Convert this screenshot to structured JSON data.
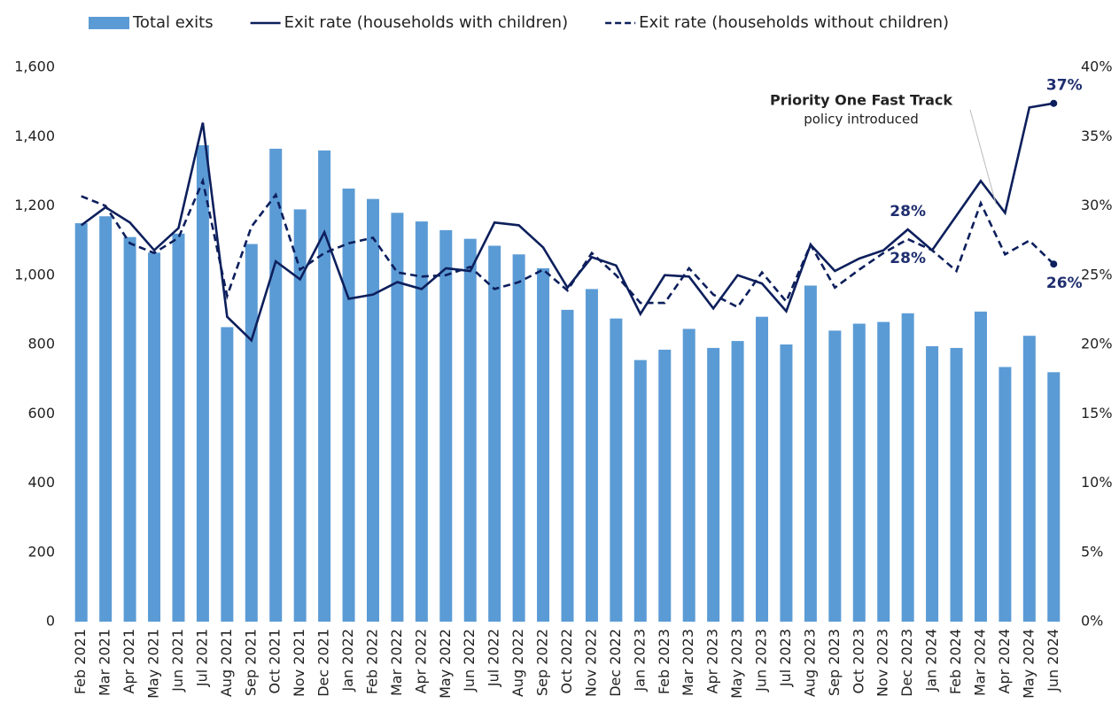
{
  "chart_data": {
    "type": "bar_line",
    "categories": [
      "Feb 2021",
      "Mar 2021",
      "Apr 2021",
      "May 2021",
      "Jun 2021",
      "Jul 2021",
      "Aug 2021",
      "Sep 2021",
      "Oct 2021",
      "Nov 2021",
      "Dec 2021",
      "Jan 2022",
      "Feb 2022",
      "Mar 2022",
      "Apr 2022",
      "May 2022",
      "Jun 2022",
      "Jul 2022",
      "Aug 2022",
      "Sep 2022",
      "Oct 2022",
      "Nov 2022",
      "Dec 2022",
      "Jan 2023",
      "Feb 2023",
      "Mar 2023",
      "Apr 2023",
      "May 2023",
      "Jun 2023",
      "Jul 2023",
      "Aug 2023",
      "Sep 2023",
      "Oct 2023",
      "Nov 2023",
      "Dec 2023",
      "Jan 2024",
      "Feb 2024",
      "Mar 2024",
      "Apr 2024",
      "May 2024",
      "Jun 2024"
    ],
    "series": [
      {
        "name": "Total exits",
        "type": "bar",
        "color": "#5b9bd5",
        "values": [
          1150,
          1170,
          1110,
          1065,
          1120,
          1375,
          850,
          1090,
          1365,
          1190,
          1360,
          1250,
          1220,
          1180,
          1155,
          1130,
          1105,
          1085,
          1060,
          1020,
          900,
          960,
          875,
          755,
          785,
          845,
          790,
          810,
          880,
          800,
          970,
          840,
          860,
          865,
          890,
          795,
          790,
          895,
          735,
          825,
          720
        ]
      },
      {
        "name": "Exit rate (households with children)",
        "type": "line",
        "axis": "y2",
        "color": "#0d1f5c",
        "dash": false,
        "values": [
          28.6,
          29.9,
          28.8,
          26.8,
          28.4,
          36.0,
          22.0,
          20.3,
          26.0,
          24.7,
          28.1,
          23.3,
          23.6,
          24.5,
          24.0,
          25.5,
          25.3,
          28.8,
          28.6,
          27.0,
          24.1,
          26.3,
          25.7,
          22.2,
          25.0,
          24.9,
          22.6,
          25.0,
          24.4,
          22.4,
          27.2,
          25.3,
          26.2,
          26.8,
          28.3,
          26.8,
          29.3,
          31.8,
          29.5,
          37.1,
          37.4
        ],
        "value_labels": [
          null,
          null,
          null,
          null,
          null,
          null,
          null,
          null,
          null,
          null,
          null,
          null,
          null,
          null,
          null,
          null,
          null,
          null,
          null,
          null,
          null,
          null,
          null,
          null,
          null,
          null,
          null,
          null,
          null,
          null,
          null,
          null,
          null,
          null,
          "28%",
          null,
          null,
          null,
          null,
          null,
          "37%"
        ]
      },
      {
        "name": "Exit rate (households without children)",
        "type": "line",
        "axis": "y2",
        "color": "#0d1f5c",
        "dash": true,
        "values": [
          30.7,
          30.0,
          27.3,
          26.6,
          27.7,
          31.8,
          23.5,
          28.5,
          30.8,
          25.4,
          26.6,
          27.3,
          27.7,
          25.2,
          24.9,
          25.0,
          25.6,
          24.0,
          24.5,
          25.4,
          23.9,
          26.6,
          25.0,
          23.0,
          23.0,
          25.5,
          23.6,
          22.7,
          25.2,
          23.1,
          27.2,
          24.1,
          25.4,
          26.6,
          27.6,
          26.8,
          25.3,
          30.2,
          26.5,
          27.5,
          25.8
        ],
        "value_labels": [
          null,
          null,
          null,
          null,
          null,
          null,
          null,
          null,
          null,
          null,
          null,
          null,
          null,
          null,
          null,
          null,
          null,
          null,
          null,
          null,
          null,
          null,
          null,
          null,
          null,
          null,
          null,
          null,
          null,
          null,
          null,
          null,
          null,
          null,
          "28%",
          null,
          null,
          null,
          null,
          null,
          "26%"
        ]
      }
    ],
    "ylim": [
      0,
      1600
    ],
    "yticks": [
      0,
      200,
      400,
      600,
      800,
      {
        "value": 1000,
        "label": "1,000"
      },
      {
        "value": 1200,
        "label": "1,200"
      },
      {
        "value": 1400,
        "label": "1,400"
      },
      {
        "value": 1600,
        "label": "1,600"
      }
    ],
    "y2lim": [
      0,
      40
    ],
    "y2ticks": [
      {
        "value": 0,
        "label": "0%"
      },
      {
        "value": 5,
        "label": "5%"
      },
      {
        "value": 10,
        "label": "10%"
      },
      {
        "value": 15,
        "label": "15%"
      },
      {
        "value": 20,
        "label": "20%"
      },
      {
        "value": 25,
        "label": "25%"
      },
      {
        "value": 30,
        "label": "30%"
      },
      {
        "value": 35,
        "label": "35%"
      },
      {
        "value": 40,
        "label": "40%"
      }
    ],
    "annotation": {
      "title": "Priority One Fast Track",
      "text": "policy introduced",
      "color": "#c00000"
    },
    "grid": false
  }
}
